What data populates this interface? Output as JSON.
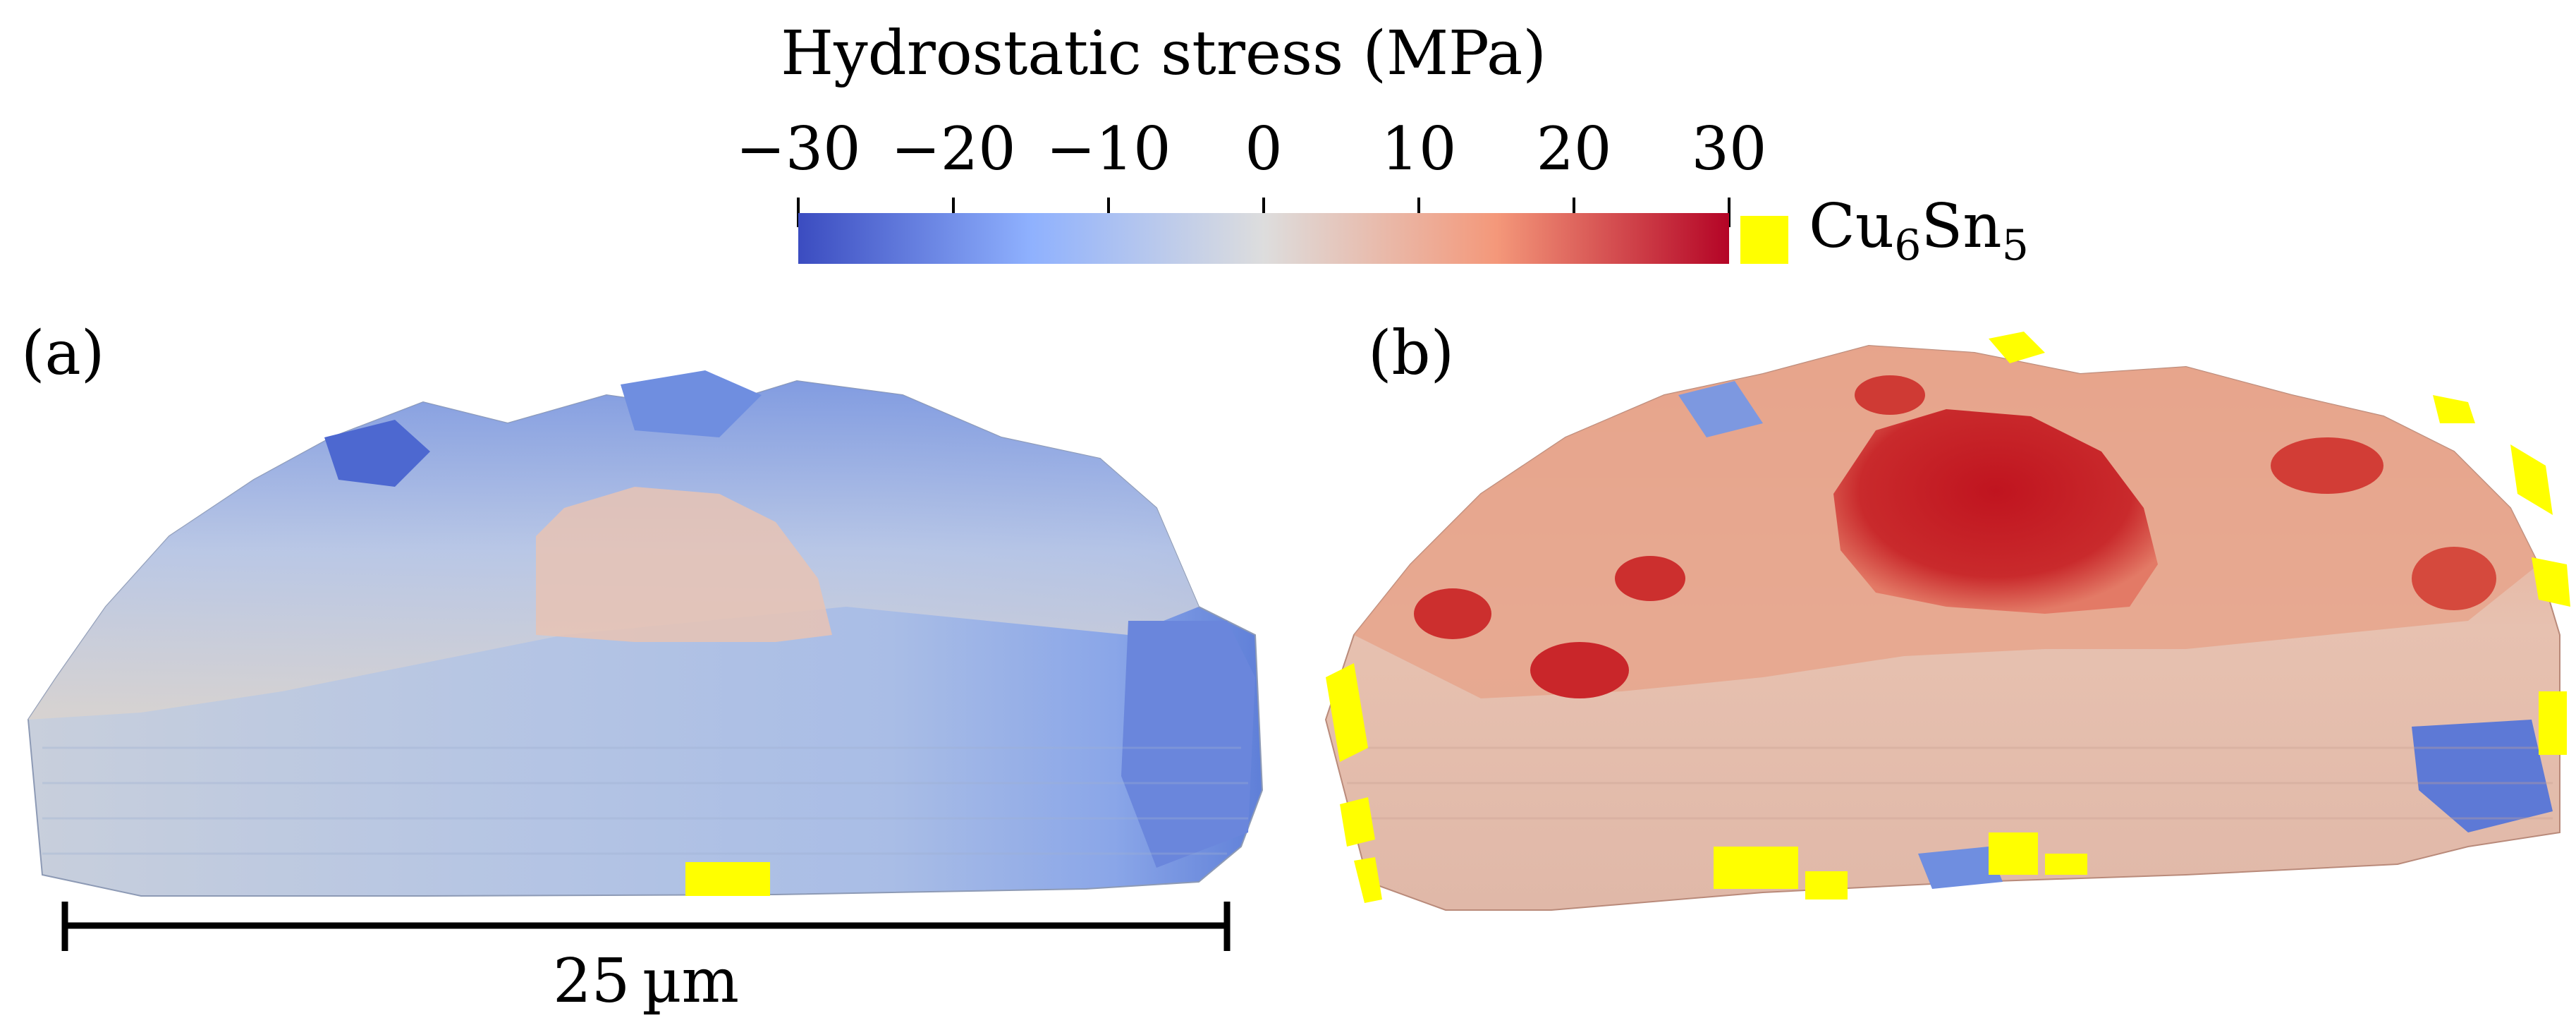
{
  "colorbar": {
    "title": "Hydrostatic stress (MPa)",
    "ticks": [
      {
        "value": -30,
        "label": "−30"
      },
      {
        "value": -20,
        "label": "−20"
      },
      {
        "value": -10,
        "label": "−10"
      },
      {
        "value": 0,
        "label": "0"
      },
      {
        "value": 10,
        "label": "10"
      },
      {
        "value": 20,
        "label": "20"
      },
      {
        "value": 30,
        "label": "30"
      }
    ],
    "range": [
      -30,
      30
    ],
    "colors": {
      "low": "#3b4cc0",
      "mid": "#dddddd",
      "high": "#b40426"
    }
  },
  "intermetallic": {
    "label_base": "Cu",
    "label_sub1": "6",
    "label_mid": "Sn",
    "label_sub2": "5",
    "color": "#ffff00"
  },
  "panels": [
    {
      "label": "(a)"
    },
    {
      "label": "(b)"
    }
  ],
  "scalebar": {
    "label": "25 µm"
  }
}
